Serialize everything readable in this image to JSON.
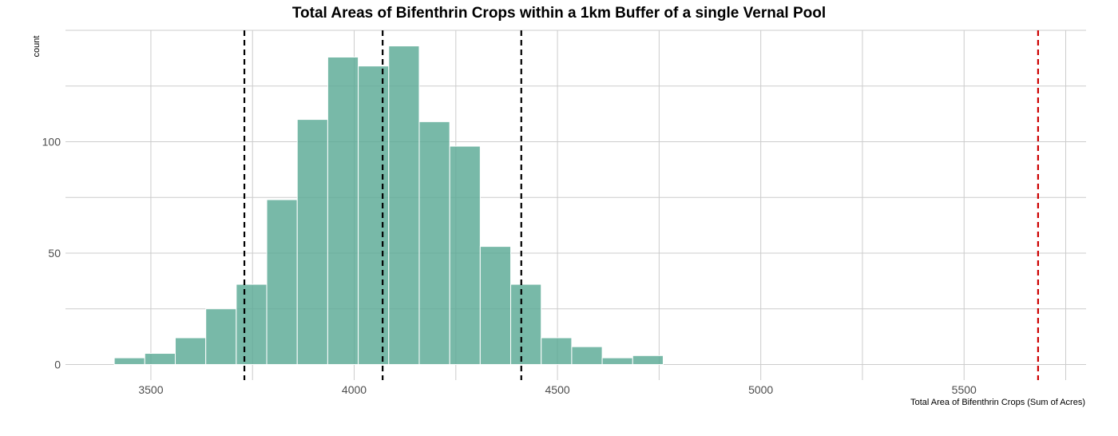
{
  "chart_data": {
    "type": "bar",
    "title": "Total Areas of Bifenthrin Crops within a 1km Buffer of a single Vernal Pool",
    "xlabel": "Total Area of Bifenthrin Crops (Sum of Acres)",
    "ylabel": "count",
    "xlim": [
      3290,
      5800
    ],
    "ylim": [
      -7,
      150
    ],
    "x_ticks": [
      3500,
      4000,
      4500,
      5000,
      5500
    ],
    "y_ticks": [
      0,
      50,
      100
    ],
    "grid": true,
    "bar_color": "#5aaa95",
    "bins": [
      {
        "x0": 3410,
        "x1": 3485,
        "count": 3
      },
      {
        "x0": 3485,
        "x1": 3560,
        "count": 5
      },
      {
        "x0": 3560,
        "x1": 3635,
        "count": 12
      },
      {
        "x0": 3635,
        "x1": 3710,
        "count": 25
      },
      {
        "x0": 3710,
        "x1": 3785,
        "count": 36
      },
      {
        "x0": 3785,
        "x1": 3860,
        "count": 74
      },
      {
        "x0": 3860,
        "x1": 3935,
        "count": 110
      },
      {
        "x0": 3935,
        "x1": 4010,
        "count": 138
      },
      {
        "x0": 4010,
        "x1": 4085,
        "count": 134
      },
      {
        "x0": 4085,
        "x1": 4160,
        "count": 143
      },
      {
        "x0": 4160,
        "x1": 4235,
        "count": 109
      },
      {
        "x0": 4235,
        "x1": 4310,
        "count": 98
      },
      {
        "x0": 4310,
        "x1": 4385,
        "count": 53
      },
      {
        "x0": 4385,
        "x1": 4460,
        "count": 36
      },
      {
        "x0": 4460,
        "x1": 4535,
        "count": 12
      },
      {
        "x0": 4535,
        "x1": 4610,
        "count": 8
      },
      {
        "x0": 4610,
        "x1": 4685,
        "count": 3
      },
      {
        "x0": 4685,
        "x1": 4760,
        "count": 4
      }
    ],
    "reference_lines": [
      {
        "x": 3730,
        "color": "#000000",
        "style": "dashed"
      },
      {
        "x": 4070,
        "color": "#000000",
        "style": "dashed"
      },
      {
        "x": 4411,
        "color": "#000000",
        "style": "dashed"
      },
      {
        "x": 5682,
        "color": "#cc0000",
        "style": "dashed"
      }
    ]
  }
}
